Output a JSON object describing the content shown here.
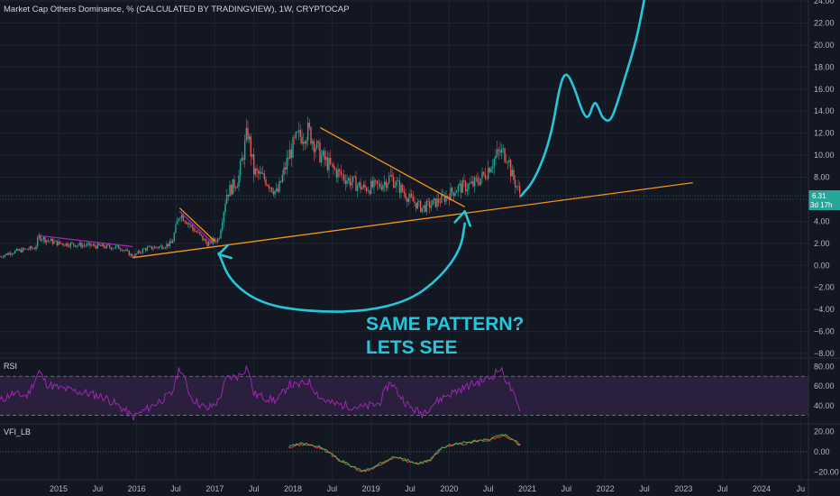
{
  "title": "Market Cap Others Dominance, % (CALCULATED BY TRADINGVIEW), 1W, CRYPTOCAP",
  "colors": {
    "background": "#131722",
    "grid": "#1f2431",
    "up_candle": "#26a69a",
    "down_candle": "#ef5350",
    "trendline": "#f7931a",
    "triangle_line": "#9c27b0",
    "drawing": "#26c6da",
    "rsi_line": "#9c27b0",
    "rsi_band": "#2a1f3d",
    "vfi_green": "#4caf50",
    "vfi_red": "#e53935",
    "price_tag": "#26a69a"
  },
  "annotation": {
    "line1": "SAME PATTERN?",
    "line2": "LETS SEE"
  },
  "chart_data": [
    {
      "type": "candlestick",
      "title": "Market Cap Others Dominance, % (CALCULATED BY TRADINGVIEW), 1W, CRYPTOCAP",
      "ylim": [
        -9,
        24
      ],
      "y_ticks": [
        24,
        22,
        20,
        18,
        16,
        14,
        12,
        10,
        8,
        6,
        4,
        2,
        0,
        -2,
        -4,
        -6,
        -8
      ],
      "y_tick_labels": [
        "24.00",
        "22.00",
        "20.00",
        "18.00",
        "16.00",
        "14.00",
        "12.00",
        "10.00",
        "8.00",
        "6.00",
        "4.00",
        "2.00",
        "0.00",
        "−2.00",
        "−4.00",
        "−6.00",
        "−8.00"
      ],
      "x_range": [
        2014.25,
        2024.6
      ],
      "x_ticks": [
        {
          "x": 2015.0,
          "label": "2015"
        },
        {
          "x": 2015.5,
          "label": "Jul"
        },
        {
          "x": 2016.0,
          "label": "2016"
        },
        {
          "x": 2016.5,
          "label": "Jul"
        },
        {
          "x": 2017.0,
          "label": "2017"
        },
        {
          "x": 2017.5,
          "label": "Jul"
        },
        {
          "x": 2018.0,
          "label": "2018"
        },
        {
          "x": 2018.5,
          "label": "Jul"
        },
        {
          "x": 2019.0,
          "label": "2019"
        },
        {
          "x": 2019.5,
          "label": "Jul"
        },
        {
          "x": 2020.0,
          "label": "2020"
        },
        {
          "x": 2020.5,
          "label": "Jul"
        },
        {
          "x": 2021.0,
          "label": "2021"
        },
        {
          "x": 2021.5,
          "label": "Jul"
        },
        {
          "x": 2022.0,
          "label": "2022"
        },
        {
          "x": 2022.5,
          "label": "Jul"
        },
        {
          "x": 2023.0,
          "label": "2023"
        },
        {
          "x": 2023.5,
          "label": "Jul"
        },
        {
          "x": 2024.0,
          "label": "2024"
        },
        {
          "x": 2024.5,
          "label": "Ju"
        }
      ],
      "last_value_label": "6.31",
      "last_value_sublabel": "3d 17h",
      "last_value": 6.31,
      "price_path": [
        [
          2014.25,
          0.8
        ],
        [
          2014.4,
          1.2
        ],
        [
          2014.55,
          1.4
        ],
        [
          2014.7,
          1.6
        ],
        [
          2014.75,
          2.6
        ],
        [
          2014.85,
          2.3
        ],
        [
          2015.0,
          2.0
        ],
        [
          2015.2,
          1.9
        ],
        [
          2015.4,
          1.8
        ],
        [
          2015.6,
          1.7
        ],
        [
          2015.8,
          1.6
        ],
        [
          2015.95,
          0.8
        ],
        [
          2016.1,
          1.5
        ],
        [
          2016.3,
          1.7
        ],
        [
          2016.45,
          2.0
        ],
        [
          2016.55,
          4.8
        ],
        [
          2016.7,
          3.5
        ],
        [
          2016.9,
          2.0
        ],
        [
          2017.05,
          2.4
        ],
        [
          2017.15,
          6.5
        ],
        [
          2017.3,
          7.8
        ],
        [
          2017.42,
          12.2
        ],
        [
          2017.5,
          8.5
        ],
        [
          2017.65,
          7.8
        ],
        [
          2017.8,
          6.5
        ],
        [
          2017.95,
          10.0
        ],
        [
          2018.05,
          11.5
        ],
        [
          2018.2,
          12.2
        ],
        [
          2018.35,
          10.0
        ],
        [
          2018.5,
          8.8
        ],
        [
          2018.7,
          7.8
        ],
        [
          2018.9,
          7.0
        ],
        [
          2019.1,
          7.2
        ],
        [
          2019.25,
          8.0
        ],
        [
          2019.35,
          7.2
        ],
        [
          2019.5,
          6.0
        ],
        [
          2019.65,
          5.2
        ],
        [
          2019.8,
          5.6
        ],
        [
          2019.95,
          6.2
        ],
        [
          2020.1,
          7.0
        ],
        [
          2020.3,
          7.3
        ],
        [
          2020.45,
          8.2
        ],
        [
          2020.55,
          9.4
        ],
        [
          2020.65,
          10.3
        ],
        [
          2020.75,
          10.0
        ],
        [
          2020.8,
          8.2
        ],
        [
          2020.92,
          6.31
        ]
      ],
      "trendlines": [
        {
          "points": [
            [
              2015.95,
              0.7
            ],
            [
              2023.12,
              7.5
            ]
          ],
          "color": "orange"
        },
        {
          "points": [
            [
              2018.35,
              12.5
            ],
            [
              2020.2,
              5.3
            ]
          ],
          "color": "orange"
        },
        {
          "points": [
            [
              2016.55,
              5.2
            ],
            [
              2017.0,
              2.2
            ]
          ],
          "color": "orange"
        },
        {
          "points": [
            [
              2014.75,
              2.7
            ],
            [
              2015.95,
              1.7
            ]
          ],
          "color": "purple"
        },
        {
          "points": [
            [
              2016.55,
              4.9
            ],
            [
              2016.95,
              2.2
            ]
          ],
          "color": "purple"
        }
      ],
      "drawing_projection": [
        [
          2020.92,
          6.3
        ],
        [
          2021.1,
          7.8
        ],
        [
          2021.3,
          11.5
        ],
        [
          2021.42,
          16.5
        ],
        [
          2021.5,
          17.6
        ],
        [
          2021.6,
          16.2
        ],
        [
          2021.7,
          14.0
        ],
        [
          2021.78,
          13.2
        ],
        [
          2021.86,
          15.0
        ],
        [
          2021.92,
          14.2
        ],
        [
          2021.96,
          13.4
        ],
        [
          2022.05,
          13.0
        ],
        [
          2022.12,
          14.0
        ],
        [
          2022.25,
          17.0
        ],
        [
          2022.4,
          20.5
        ],
        [
          2022.5,
          24.2
        ]
      ],
      "drawing_arc": [
        [
          2017.05,
          1.1
        ],
        [
          2017.2,
          -1.5
        ],
        [
          2017.6,
          -3.5
        ],
        [
          2018.2,
          -4.2
        ],
        [
          2018.9,
          -4.2
        ],
        [
          2019.5,
          -3.2
        ],
        [
          2019.9,
          -1.0
        ],
        [
          2020.15,
          1.5
        ],
        [
          2020.2,
          3.8
        ]
      ],
      "arrow_heads": [
        {
          "tip": [
            2017.05,
            1.0
          ]
        },
        {
          "tip": [
            2020.2,
            4.9
          ]
        }
      ]
    },
    {
      "type": "line",
      "name": "RSI",
      "ylim": [
        25,
        85
      ],
      "y_ticks": [
        80,
        60,
        40
      ],
      "y_tick_labels": [
        "80.00",
        "60.00",
        "40.00"
      ],
      "band": [
        30,
        70
      ],
      "series": [
        {
          "name": "RSI",
          "values_x_range": [
            2014.25,
            2020.92
          ]
        }
      ],
      "rsi_path": [
        [
          2014.25,
          45
        ],
        [
          2014.4,
          52
        ],
        [
          2014.6,
          50
        ],
        [
          2014.75,
          75
        ],
        [
          2014.85,
          62
        ],
        [
          2015.0,
          58
        ],
        [
          2015.2,
          55
        ],
        [
          2015.4,
          52
        ],
        [
          2015.6,
          48
        ],
        [
          2015.8,
          38
        ],
        [
          2015.95,
          28
        ],
        [
          2016.1,
          35
        ],
        [
          2016.3,
          45
        ],
        [
          2016.45,
          52
        ],
        [
          2016.55,
          80
        ],
        [
          2016.7,
          48
        ],
        [
          2016.9,
          36
        ],
        [
          2017.05,
          45
        ],
        [
          2017.15,
          68
        ],
        [
          2017.3,
          70
        ],
        [
          2017.42,
          80
        ],
        [
          2017.5,
          52
        ],
        [
          2017.65,
          48
        ],
        [
          2017.8,
          45
        ],
        [
          2017.95,
          62
        ],
        [
          2018.05,
          60
        ],
        [
          2018.2,
          65
        ],
        [
          2018.35,
          48
        ],
        [
          2018.5,
          42
        ],
        [
          2018.7,
          40
        ],
        [
          2018.9,
          38
        ],
        [
          2019.1,
          42
        ],
        [
          2019.25,
          65
        ],
        [
          2019.35,
          52
        ],
        [
          2019.5,
          38
        ],
        [
          2019.65,
          32
        ],
        [
          2019.8,
          42
        ],
        [
          2019.95,
          50
        ],
        [
          2020.1,
          55
        ],
        [
          2020.3,
          62
        ],
        [
          2020.45,
          66
        ],
        [
          2020.55,
          70
        ],
        [
          2020.65,
          78
        ],
        [
          2020.75,
          64
        ],
        [
          2020.8,
          55
        ],
        [
          2020.92,
          32
        ]
      ]
    },
    {
      "type": "line",
      "name": "VFI_LB",
      "ylim": [
        -24,
        24
      ],
      "y_ticks": [
        20,
        0,
        -20
      ],
      "y_tick_labels": [
        "20.00",
        "0.00",
        "−20.00"
      ],
      "series": [
        {
          "name": "VFI_LB"
        }
      ],
      "vfi_path": [
        [
          2017.95,
          5
        ],
        [
          2018.1,
          8
        ],
        [
          2018.25,
          7
        ],
        [
          2018.4,
          3
        ],
        [
          2018.6,
          -8
        ],
        [
          2018.75,
          -14
        ],
        [
          2018.9,
          -19
        ],
        [
          2019.05,
          -15
        ],
        [
          2019.2,
          -8
        ],
        [
          2019.3,
          -4
        ],
        [
          2019.45,
          -8
        ],
        [
          2019.6,
          -12
        ],
        [
          2019.75,
          -8
        ],
        [
          2019.9,
          4
        ],
        [
          2020.05,
          8
        ],
        [
          2020.2,
          9
        ],
        [
          2020.35,
          11
        ],
        [
          2020.5,
          12
        ],
        [
          2020.6,
          15
        ],
        [
          2020.7,
          17
        ],
        [
          2020.8,
          13
        ],
        [
          2020.92,
          6
        ]
      ]
    }
  ]
}
